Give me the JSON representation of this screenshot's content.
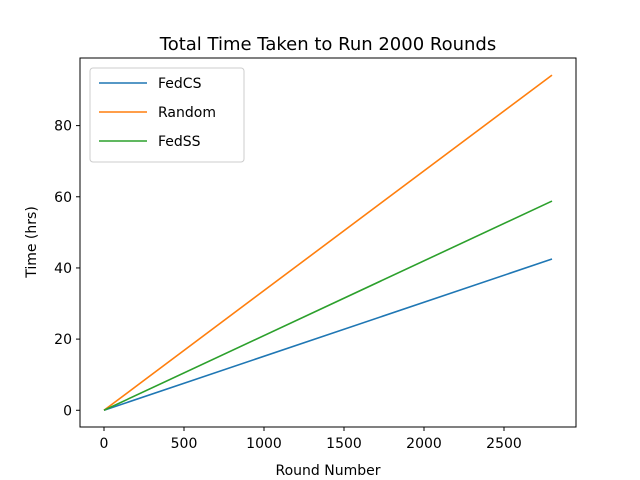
{
  "chart_data": {
    "type": "line",
    "title": "Total Time Taken to Run 2000 Rounds",
    "xlabel": "Round Number",
    "ylabel": "Time (hrs)",
    "xlim": [
      -150,
      2950
    ],
    "ylim": [
      -4.7,
      99
    ],
    "xticks": [
      0,
      500,
      1000,
      1500,
      2000,
      2500
    ],
    "yticks": [
      0,
      20,
      40,
      60,
      80
    ],
    "grid": false,
    "legend_position": "top-left",
    "series": [
      {
        "name": "FedCS",
        "color": "#1f77b4",
        "x": [
          0,
          2800
        ],
        "y": [
          0,
          42.5
        ]
      },
      {
        "name": "Random",
        "color": "#ff7f0e",
        "x": [
          0,
          2800
        ],
        "y": [
          0,
          94.2
        ]
      },
      {
        "name": "FedSS",
        "color": "#2ca02c",
        "x": [
          0,
          2800
        ],
        "y": [
          0,
          58.8
        ]
      }
    ]
  }
}
